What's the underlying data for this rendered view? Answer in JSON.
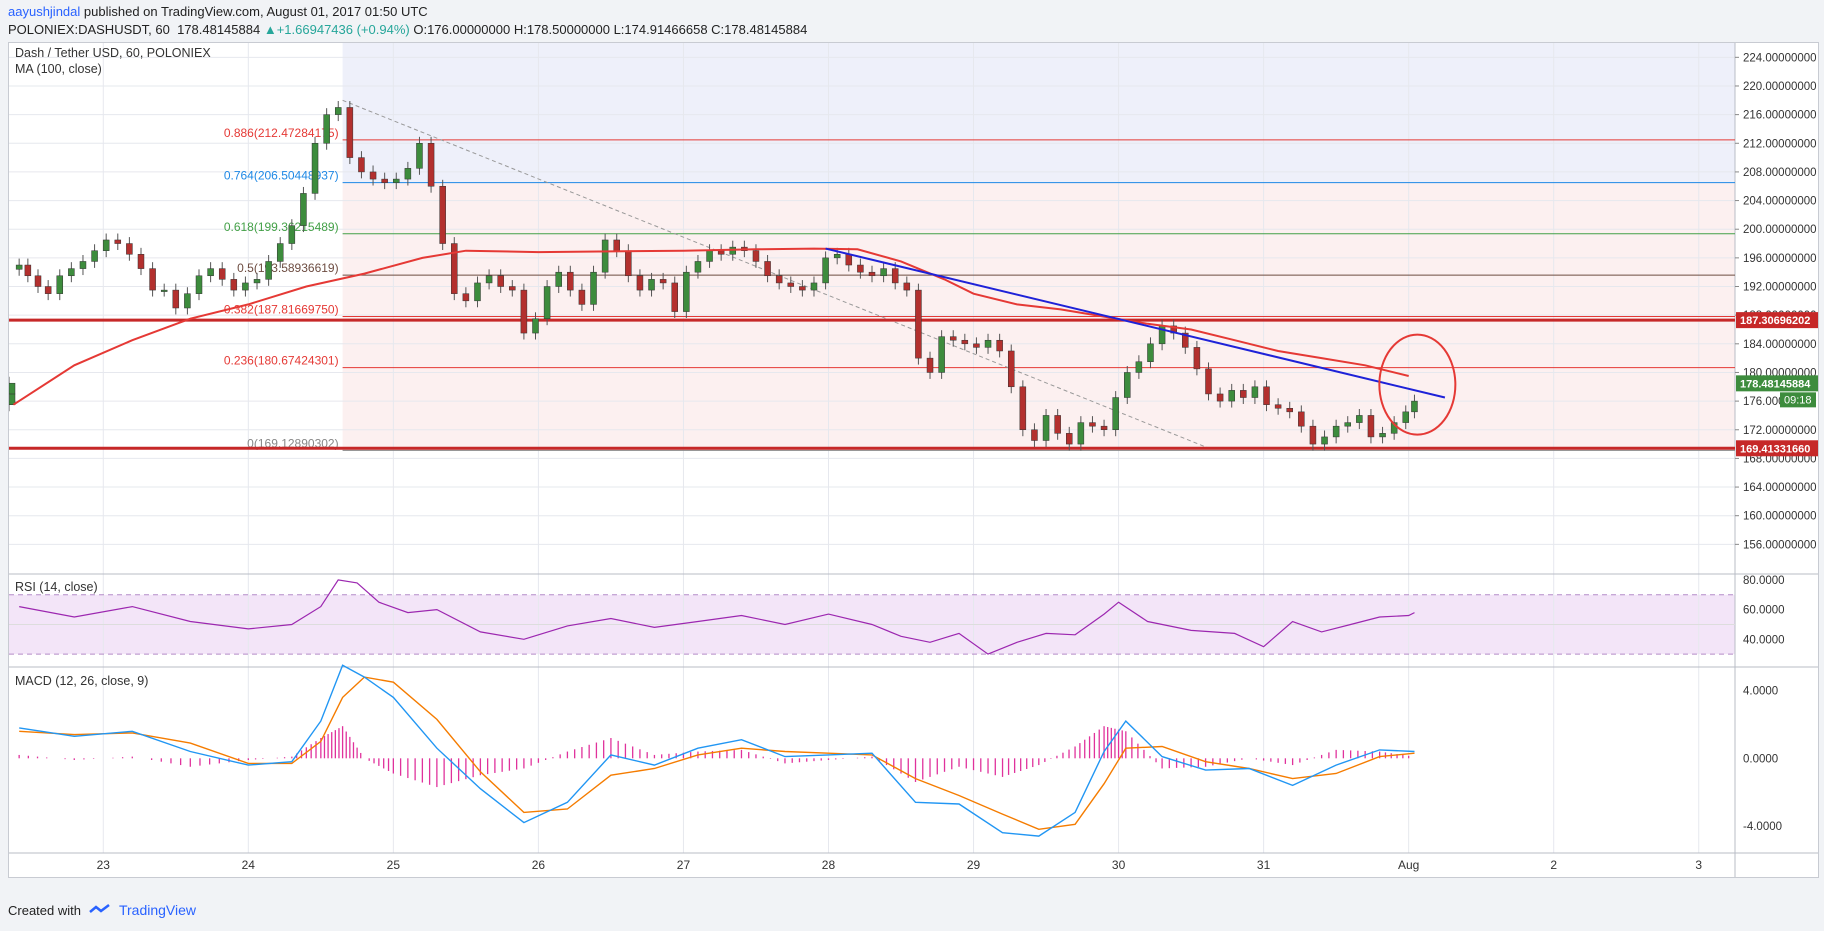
{
  "header": {
    "author": "aayushjindal",
    "published_text": " published on TradingView.com, August 01, 2017 01:50 UTC",
    "symbol_line": "POLONIEX:DASHUSDT, 60",
    "last_price": "178.48145884",
    "change": "+1.66947436 (+0.94%)",
    "change_arrow": "▲",
    "ohlc_text": "O:176.00000000 H:178.50000000 L:174.91466658 C:178.48145884"
  },
  "footer": {
    "created_with": "Created with",
    "brand": "TradingView"
  },
  "chart_data": [
    {
      "type": "candlestick",
      "title": "Dash / Tether USD, 60, POLONIEX",
      "indicator_label": "MA (100, close)",
      "ylim": [
        152,
        226
      ],
      "y_ticks": [
        "156.00000000",
        "160.00000000",
        "164.00000000",
        "168.00000000",
        "172.00000000",
        "176.00000000",
        "180.00000000",
        "184.00000000",
        "188.00000000",
        "192.00000000",
        "196.00000000",
        "200.00000000",
        "204.00000000",
        "208.00000000",
        "212.00000000",
        "216.00000000",
        "220.00000000",
        "224.00000000"
      ],
      "x_ticks": [
        "23",
        "24",
        "25",
        "26",
        "27",
        "28",
        "29",
        "30",
        "31",
        "Aug",
        "2",
        "3"
      ],
      "x_tick_days": [
        23,
        24,
        25,
        26,
        27,
        28,
        29,
        30,
        31,
        32,
        33,
        34
      ],
      "xlim_days": [
        22.35,
        34.25
      ],
      "last_price_tag": "178.48145884",
      "countdown_tag": "09:18",
      "support_level": 169.4133166,
      "support_tag": "169.41331660",
      "resistance_level": 187.30696202,
      "resistance_tag": "187.30696202",
      "fib_start_day": 24.65,
      "fib_levels": [
        {
          "label": "0.886(212.47284175)",
          "value": 212.47284175,
          "color": "#e53935"
        },
        {
          "label": "0.764(206.50448937)",
          "value": 206.50448937,
          "color": "#1e88e5"
        },
        {
          "label": "0.618(199.36215489)",
          "value": 199.36215489,
          "color": "#43a047"
        },
        {
          "label": "0.5(193.58936619)",
          "value": 193.58936619,
          "color": "#6d4c41"
        },
        {
          "label": "0.382(187.81669750)",
          "value": 187.8166975,
          "color": "#e53935"
        },
        {
          "label": "0.236(180.67424301)",
          "value": 180.67424301,
          "color": "#e53935"
        },
        {
          "label": "0(169.12890302)",
          "value": 169.12890302,
          "color": "#888888"
        }
      ],
      "trendline": {
        "x": [
          27.98,
          32.25
        ],
        "y": [
          197.3,
          176.5
        ],
        "color": "#1e22d8"
      },
      "fib_diagonal": {
        "x": [
          24.65,
          30.65
        ],
        "y": [
          218.0,
          169.2
        ]
      },
      "ma_points": {
        "x": [
          22.38,
          22.8,
          23.2,
          23.6,
          24.0,
          24.4,
          24.8,
          25.2,
          25.5,
          26.0,
          26.5,
          27.0,
          27.5,
          27.9,
          28.2,
          28.5,
          28.8,
          29.0,
          29.3,
          29.6,
          29.9,
          30.2,
          30.5,
          30.8,
          31.1,
          31.4,
          31.7,
          32.0
        ],
        "y": [
          175.5,
          181,
          184.5,
          187.5,
          189.5,
          192,
          193.8,
          196,
          197,
          196.8,
          196.9,
          197,
          197.2,
          197.3,
          197.2,
          195.5,
          193,
          191,
          189.5,
          188.8,
          187.8,
          186.8,
          186,
          184.5,
          183,
          182,
          181,
          179.5
        ]
      },
      "candles": {
        "x": [
          22.42,
          22.48,
          22.55,
          22.62,
          22.7,
          22.78,
          22.86,
          22.94,
          23.02,
          23.1,
          23.18,
          23.26,
          23.34,
          23.42,
          23.5,
          23.58,
          23.66,
          23.74,
          23.82,
          23.9,
          23.98,
          24.06,
          24.14,
          24.22,
          24.3,
          24.38,
          24.46,
          24.54,
          24.62,
          24.7,
          24.78,
          24.86,
          24.94,
          25.02,
          25.1,
          25.18,
          25.26,
          25.34,
          25.42,
          25.5,
          25.58,
          25.66,
          25.74,
          25.82,
          25.9,
          25.98,
          26.06,
          26.14,
          26.22,
          26.3,
          26.38,
          26.46,
          26.54,
          26.62,
          26.7,
          26.78,
          26.86,
          26.94,
          27.02,
          27.1,
          27.18,
          27.26,
          27.34,
          27.42,
          27.5,
          27.58,
          27.66,
          27.74,
          27.82,
          27.9,
          27.98,
          28.06,
          28.14,
          28.22,
          28.3,
          28.38,
          28.46,
          28.54,
          28.62,
          28.7,
          28.78,
          28.86,
          28.94,
          29.02,
          29.1,
          29.18,
          29.26,
          29.34,
          29.42,
          29.5,
          29.58,
          29.66,
          29.74,
          29.82,
          29.9,
          29.98,
          30.06,
          30.14,
          30.22,
          30.3,
          30.38,
          30.46,
          30.54,
          30.62,
          30.7,
          30.78,
          30.86,
          30.94,
          31.02,
          31.1,
          31.18,
          31.26,
          31.34,
          31.42,
          31.5,
          31.58,
          31.66,
          31.74,
          31.82,
          31.9,
          31.98,
          32.04
        ],
        "c": [
          195,
          193.5,
          192,
          191,
          193.5,
          194.5,
          195.5,
          197,
          198.5,
          198,
          196.5,
          194.5,
          191.5,
          191.5,
          189,
          191,
          193.5,
          194.5,
          193,
          191.5,
          192.5,
          193,
          195.5,
          198,
          200.5,
          205,
          212,
          216,
          217,
          210,
          208,
          207,
          206.5,
          207,
          208.5,
          212,
          206,
          198,
          191,
          190,
          192.5,
          193.5,
          192,
          191.5,
          185.5,
          187.5,
          192,
          194,
          191.5,
          189.5,
          194,
          198.5,
          197,
          193.5,
          191.5,
          193,
          192.5,
          188.5,
          194,
          195.5,
          197,
          196.5,
          197.5,
          197,
          195.5,
          193.5,
          192.5,
          192,
          191.5,
          192.5,
          196,
          196.5,
          195,
          194,
          193.5,
          194.5,
          192.5,
          191.5,
          182,
          180,
          185,
          184.5,
          184,
          183.5,
          184.5,
          183,
          178,
          172,
          170.5,
          174,
          171.5,
          170,
          173,
          172.5,
          172,
          176.5,
          180,
          181.5,
          184,
          186.5,
          185.5,
          183.5,
          180.5,
          177,
          176,
          177.5,
          176.5,
          178,
          175.5,
          175,
          174.5,
          172.5,
          170,
          171,
          172.5,
          173,
          174,
          171,
          171.5,
          173,
          174.5,
          176,
          175.5,
          177,
          178.5
        ]
      }
    },
    {
      "type": "line",
      "title": "RSI (14, close)",
      "ylim": [
        22,
        84
      ],
      "y_ticks": [
        "40.0000",
        "60.0000",
        "80.0000"
      ],
      "bands": [
        30,
        70
      ],
      "x": [
        22.42,
        22.8,
        23.2,
        23.6,
        24.0,
        24.3,
        24.5,
        24.62,
        24.75,
        24.9,
        25.1,
        25.3,
        25.6,
        25.9,
        26.2,
        26.5,
        26.8,
        27.1,
        27.4,
        27.7,
        28.0,
        28.3,
        28.5,
        28.7,
        28.9,
        29.1,
        29.3,
        29.5,
        29.7,
        29.9,
        30.0,
        30.2,
        30.5,
        30.8,
        31.0,
        31.2,
        31.4,
        31.6,
        31.8,
        32.0,
        32.04
      ],
      "y": [
        62,
        55,
        62,
        52,
        47,
        50,
        62,
        80,
        78,
        65,
        58,
        60,
        45,
        40,
        49,
        54,
        48,
        52,
        56,
        50,
        57,
        50,
        42,
        38,
        44,
        30,
        38,
        44,
        43,
        57,
        65,
        52,
        46,
        44,
        35,
        52,
        45,
        50,
        55,
        56,
        58
      ]
    },
    {
      "type": "bar+line",
      "title": "MACD (12, 26, close, 9)",
      "ylim": [
        -5.6,
        5.4
      ],
      "y_ticks": [
        "-4.0000",
        "0.0000",
        "4.0000"
      ],
      "x": [
        22.42,
        22.8,
        23.2,
        23.6,
        24.0,
        24.3,
        24.5,
        24.65,
        24.8,
        25.0,
        25.3,
        25.6,
        25.9,
        26.2,
        26.5,
        26.8,
        27.1,
        27.4,
        27.7,
        28.0,
        28.3,
        28.6,
        28.9,
        29.2,
        29.45,
        29.7,
        29.9,
        30.05,
        30.3,
        30.6,
        30.9,
        31.2,
        31.5,
        31.8,
        32.04
      ],
      "macd": [
        1.8,
        1.3,
        1.6,
        0.4,
        -0.4,
        -0.2,
        2.2,
        5.5,
        4.8,
        3.6,
        0.6,
        -1.8,
        -3.8,
        -2.6,
        0.2,
        -0.4,
        0.6,
        1.1,
        0.1,
        0.2,
        0.3,
        -2.6,
        -2.7,
        -4.4,
        -4.6,
        -3.2,
        0.4,
        2.2,
        0.1,
        -0.7,
        -0.6,
        -1.6,
        -0.4,
        0.5,
        0.4
      ],
      "signal": [
        1.6,
        1.4,
        1.5,
        0.9,
        -0.3,
        -0.3,
        1.0,
        3.6,
        4.8,
        4.5,
        2.3,
        -0.8,
        -3.2,
        -3.0,
        -1.0,
        -0.6,
        0.2,
        0.6,
        0.4,
        0.3,
        0.2,
        -1.2,
        -2.2,
        -3.3,
        -4.2,
        -3.9,
        -1.5,
        0.6,
        0.7,
        -0.2,
        -0.6,
        -1.2,
        -0.9,
        0.1,
        0.3
      ]
    }
  ]
}
